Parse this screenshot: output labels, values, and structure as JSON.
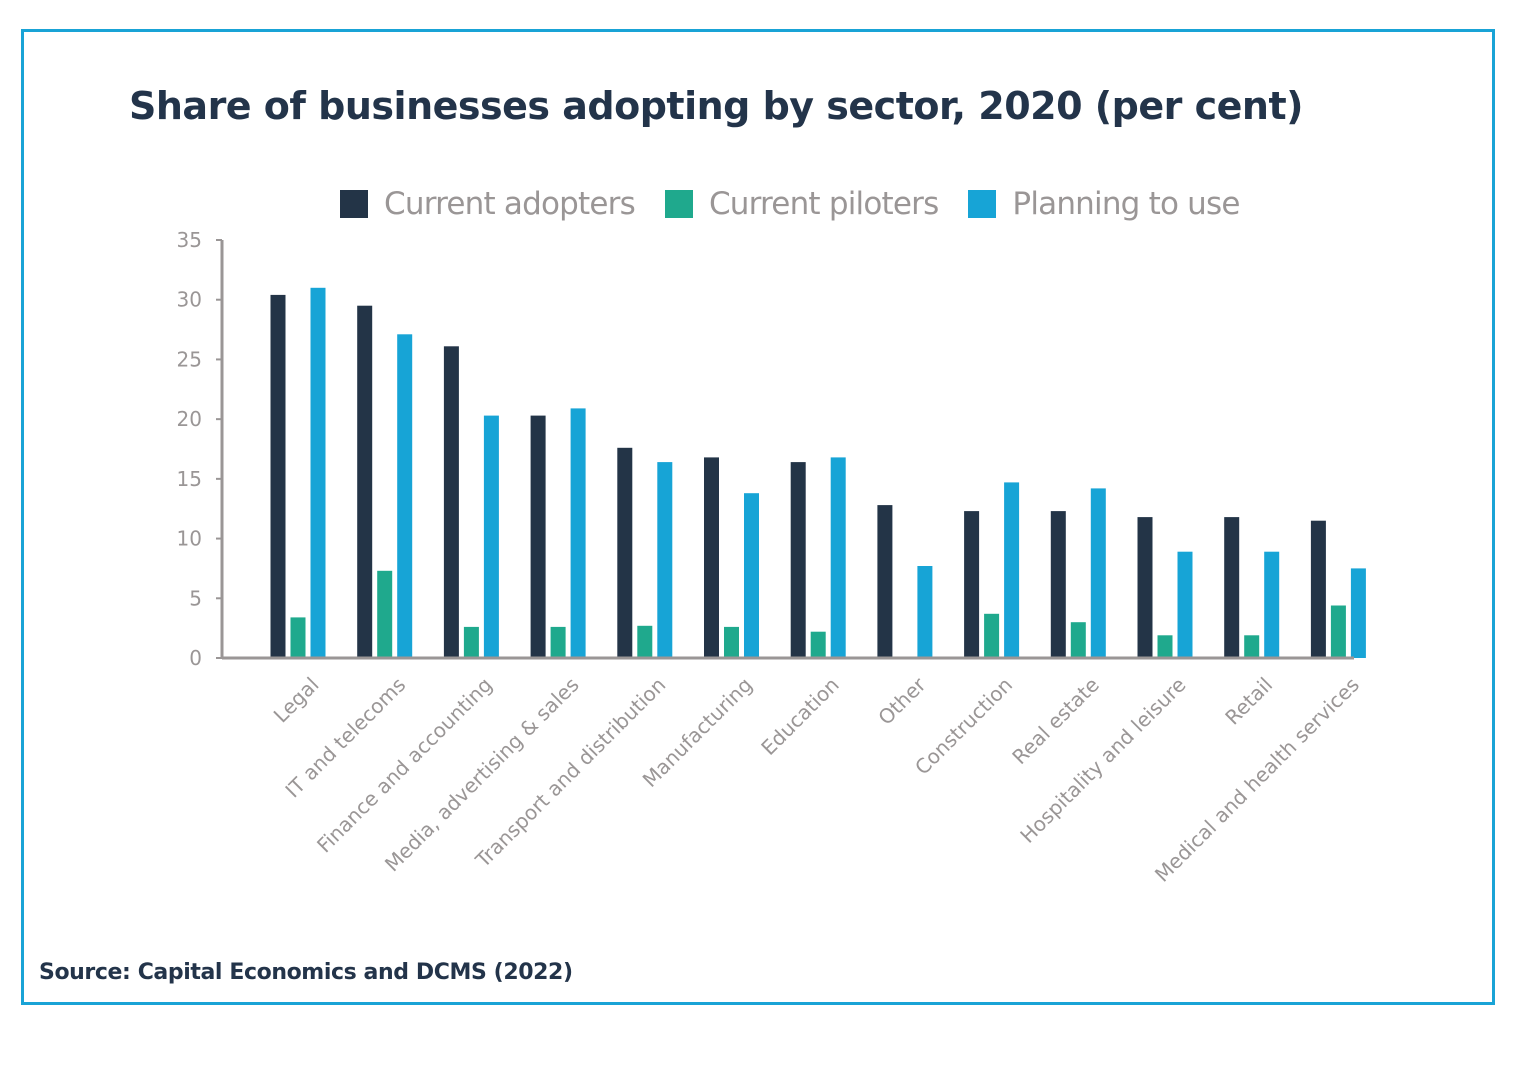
{
  "chart_data": {
    "type": "bar",
    "title": "Share of businesses adopting by sector, 2020 (per cent)",
    "xlabel": "",
    "ylabel": "",
    "ylim": [
      0,
      35
    ],
    "yticks": [
      0,
      5,
      10,
      15,
      20,
      25,
      30,
      35
    ],
    "grid": false,
    "legend_position": "top",
    "categories": [
      "Legal",
      "IT and telecoms",
      "Finance and accounting",
      "Media, advertising & sales",
      "Transport and distribution",
      "Manufacturing",
      "Education",
      "Other",
      "Construction",
      "Real estate",
      "Hospitality and leisure",
      "Retail",
      "Medical and health services"
    ],
    "series": [
      {
        "name": "Current adopters",
        "color": "#233447",
        "values": [
          30.4,
          29.5,
          26.1,
          20.3,
          17.6,
          16.8,
          16.4,
          12.8,
          12.3,
          12.3,
          11.8,
          11.8,
          11.5
        ]
      },
      {
        "name": "Current piloters",
        "color": "#1fa98d",
        "values": [
          3.4,
          7.3,
          2.6,
          2.6,
          2.7,
          2.6,
          2.2,
          0,
          3.7,
          3.0,
          1.9,
          1.9,
          4.4
        ]
      },
      {
        "name": "Planning to use",
        "color": "#17a4d6",
        "values": [
          31.0,
          27.1,
          20.3,
          20.9,
          16.4,
          13.8,
          16.8,
          7.7,
          14.7,
          14.2,
          8.9,
          8.9,
          7.5
        ]
      }
    ],
    "source": "Source: Capital Economics and DCMS (2022)"
  },
  "colors": {
    "frame_border": "#19a3d6",
    "title": "#23344a",
    "axis": "#9a9696"
  }
}
